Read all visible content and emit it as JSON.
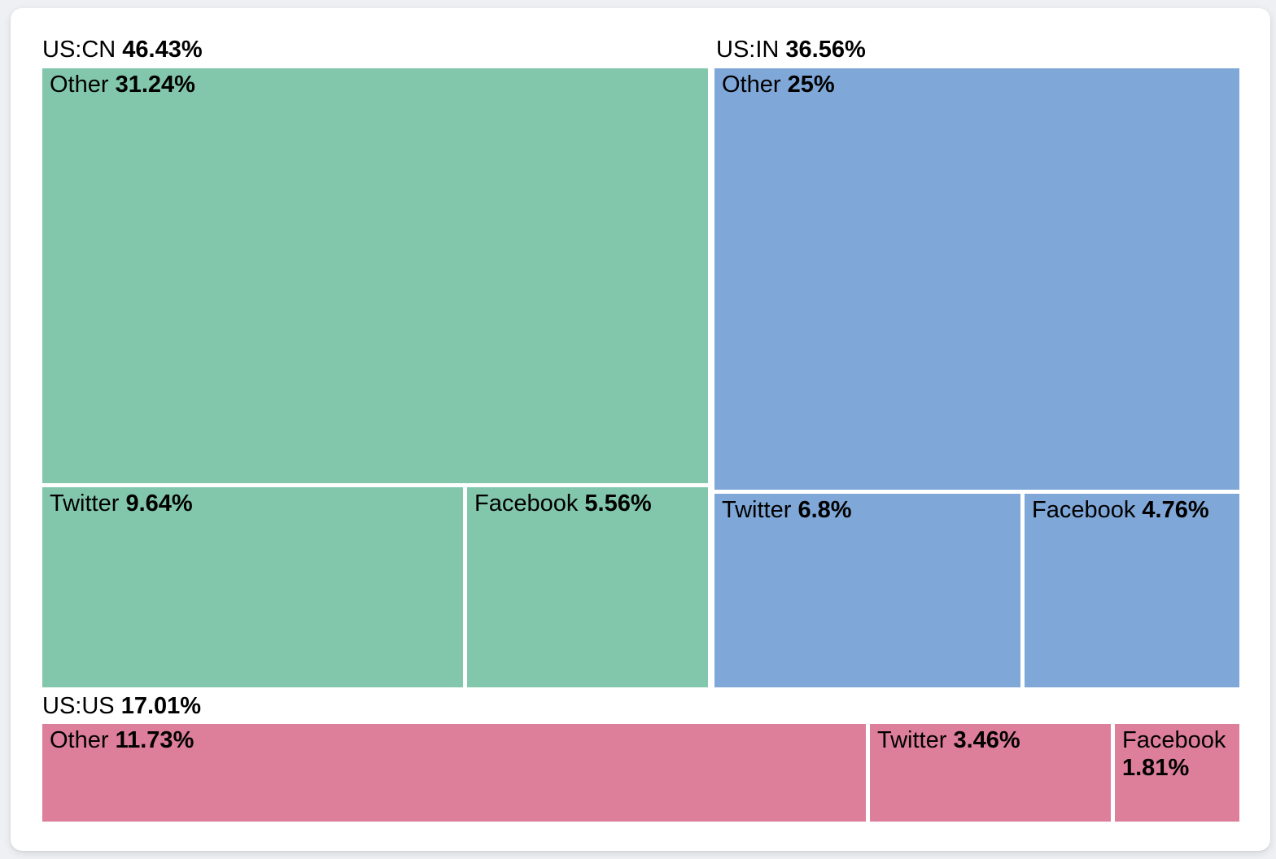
{
  "colors": {
    "page_background": "#eef0f3",
    "card_background": "#ffffff",
    "text": "#000000",
    "group_green": "#82c7ac",
    "group_blue": "#7fa7d8",
    "group_pink": "#dd7e9b"
  },
  "chart_data": {
    "type": "treemap",
    "unit": "%",
    "groups": [
      {
        "name": "US:CN",
        "share": 46.43,
        "share_label": "46.43%",
        "color": "#82c7ac",
        "children": [
          {
            "name": "Other",
            "share": 31.24,
            "share_label": "31.24%"
          },
          {
            "name": "Twitter",
            "share": 9.64,
            "share_label": "9.64%"
          },
          {
            "name": "Facebook",
            "share": 5.56,
            "share_label": "5.56%"
          }
        ]
      },
      {
        "name": "US:IN",
        "share": 36.56,
        "share_label": "36.56%",
        "color": "#7fa7d8",
        "children": [
          {
            "name": "Other",
            "share": 25,
            "share_label": "25%"
          },
          {
            "name": "Twitter",
            "share": 6.8,
            "share_label": "6.8%"
          },
          {
            "name": "Facebook",
            "share": 4.76,
            "share_label": "4.76%"
          }
        ]
      },
      {
        "name": "US:US",
        "share": 17.01,
        "share_label": "17.01%",
        "color": "#dd7e9b",
        "children": [
          {
            "name": "Other",
            "share": 11.73,
            "share_label": "11.73%"
          },
          {
            "name": "Twitter",
            "share": 3.46,
            "share_label": "3.46%"
          },
          {
            "name": "Facebook",
            "share": 1.81,
            "share_label": "1.81%"
          }
        ]
      }
    ]
  }
}
